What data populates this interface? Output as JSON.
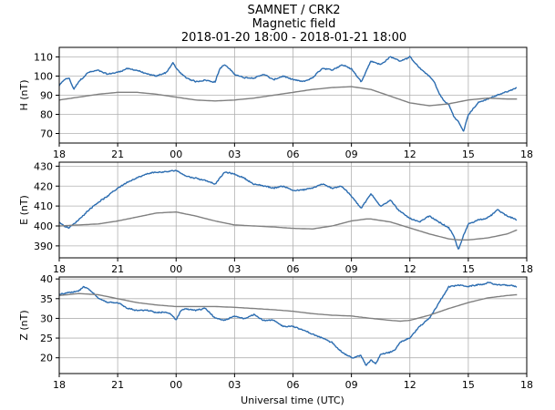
{
  "title": {
    "line1": "SAMNET / CRK2",
    "line2": "Magnetic field",
    "line3": "2018-01-20 18:00 - 2018-01-21 18:00"
  },
  "xaxis": {
    "label": "Universal time (UTC)",
    "range_hours": [
      0,
      24
    ],
    "ticks": [
      {
        "h": 0,
        "label": "18"
      },
      {
        "h": 3,
        "label": "21"
      },
      {
        "h": 6,
        "label": "00"
      },
      {
        "h": 9,
        "label": "03"
      },
      {
        "h": 12,
        "label": "06"
      },
      {
        "h": 15,
        "label": "09"
      },
      {
        "h": 18,
        "label": "12"
      },
      {
        "h": 21,
        "label": "15"
      },
      {
        "h": 24,
        "label": "18"
      }
    ]
  },
  "colors": {
    "measured": "#2b6cb0",
    "quiet_day": "#808080",
    "grid": "#b0b0b0"
  },
  "chart_data": [
    {
      "type": "line",
      "id": "H",
      "ylabel": "H (nT)",
      "ylim": [
        65,
        115
      ],
      "yticks": [
        70,
        80,
        90,
        100,
        110
      ],
      "grid": true,
      "series": [
        {
          "name": "measured",
          "x": [
            0,
            0.25,
            0.5,
            0.75,
            1,
            1.5,
            2,
            2.5,
            3,
            3.5,
            4,
            4.5,
            5,
            5.5,
            5.85,
            6,
            6.5,
            7,
            7.5,
            8,
            8.25,
            8.5,
            9,
            9.5,
            10,
            10.5,
            11,
            11.5,
            12,
            12.5,
            13,
            13.5,
            14,
            14.5,
            15,
            15.5,
            16,
            16.5,
            17,
            17.5,
            18,
            18.5,
            19,
            19.25,
            19.5,
            19.75,
            20,
            20.25,
            20.5,
            20.75,
            21,
            21.5,
            22,
            22.5,
            23,
            23.5
          ],
          "y": [
            95,
            98,
            99,
            93,
            97,
            102,
            103,
            101,
            102,
            104,
            103,
            101,
            100,
            102,
            107,
            104,
            99,
            97,
            98,
            97,
            104,
            106,
            101,
            99,
            99,
            101,
            98,
            100,
            98,
            97,
            99,
            104,
            103,
            106,
            104,
            97,
            108,
            106,
            110,
            108,
            110,
            104,
            100,
            97,
            91,
            87,
            85,
            79,
            76,
            71,
            80,
            86,
            88,
            90,
            92,
            94
          ]
        },
        {
          "name": "quiet_day",
          "x": [
            0,
            1,
            2,
            3,
            4,
            5,
            6,
            7,
            8,
            9,
            10,
            11,
            12,
            13,
            14,
            15,
            16,
            17,
            18,
            19,
            20,
            21,
            22,
            23,
            23.5
          ],
          "y": [
            87.5,
            89,
            90.5,
            91.5,
            91.5,
            90.5,
            89,
            87.5,
            87,
            87.5,
            88.5,
            90,
            91.5,
            93,
            94,
            94.5,
            93,
            89.5,
            86,
            84.5,
            85.5,
            87.5,
            88.5,
            88,
            88
          ]
        }
      ]
    },
    {
      "type": "line",
      "id": "E",
      "ylabel": "E (nT)",
      "ylim": [
        384,
        432
      ],
      "yticks": [
        390,
        400,
        410,
        420,
        430
      ],
      "grid": true,
      "series": [
        {
          "name": "measured",
          "x": [
            0,
            0.25,
            0.5,
            1,
            1.5,
            2,
            2.5,
            3,
            3.5,
            4,
            4.5,
            5,
            5.5,
            6,
            6.5,
            7,
            7.5,
            8,
            8.5,
            9,
            9.5,
            10,
            10.5,
            11,
            11.5,
            12,
            12.5,
            13,
            13.5,
            14,
            14.5,
            15,
            15.5,
            16,
            16.5,
            17,
            17.5,
            18,
            18.5,
            19,
            19.5,
            20,
            20.25,
            20.5,
            20.75,
            21,
            21.5,
            22,
            22.5,
            23,
            23.5
          ],
          "y": [
            402,
            400,
            399,
            403,
            408,
            412,
            415,
            419,
            422,
            424,
            426,
            427,
            427,
            428,
            425,
            424,
            423,
            421,
            427,
            426,
            424,
            421,
            420,
            419,
            420,
            418,
            418,
            419,
            421,
            419,
            420,
            415,
            409,
            416,
            410,
            413,
            407,
            404,
            402,
            405,
            402,
            399,
            395,
            388,
            395,
            401,
            403,
            404,
            408,
            405,
            403
          ]
        },
        {
          "name": "quiet_day",
          "x": [
            0,
            1,
            2,
            3,
            4,
            5,
            6,
            7,
            8,
            9,
            10,
            11,
            12,
            13,
            14,
            15,
            15.75,
            16,
            17,
            18,
            19,
            20,
            20.5,
            21,
            22,
            23,
            23.5
          ],
          "y": [
            400,
            400.5,
            401,
            402.5,
            404.5,
            406.5,
            407,
            405,
            402.5,
            400.5,
            400,
            399.5,
            398.8,
            398.5,
            400,
            402.5,
            403.5,
            403.5,
            402,
            399,
            396,
            393.5,
            393,
            393,
            394,
            396,
            398
          ]
        }
      ]
    },
    {
      "type": "line",
      "id": "Z",
      "ylabel": "Z (nT)",
      "ylim": [
        16,
        40.5
      ],
      "yticks": [
        20,
        25,
        30,
        35,
        40
      ],
      "grid": true,
      "series": [
        {
          "name": "measured",
          "x": [
            0,
            0.5,
            1,
            1.25,
            1.5,
            2,
            2.5,
            3,
            3.5,
            4,
            4.5,
            5,
            5.5,
            5.75,
            6,
            6.25,
            6.5,
            7,
            7.5,
            8,
            8.5,
            9,
            9.5,
            10,
            10.5,
            11,
            11.5,
            12,
            12.5,
            13,
            13.5,
            14,
            14.5,
            15,
            15.5,
            15.75,
            16,
            16.25,
            16.5,
            17,
            17.25,
            17.5,
            18,
            18.5,
            19,
            19.5,
            20,
            20.5,
            21,
            21.5,
            22,
            22.5,
            23,
            23.5
          ],
          "y": [
            36,
            36.5,
            37,
            38,
            37.5,
            35,
            34,
            34,
            32.5,
            32,
            32,
            31.5,
            31.5,
            31,
            29.5,
            32,
            32.5,
            32,
            32.5,
            30,
            29.5,
            30.5,
            30,
            31,
            29.5,
            29.5,
            28,
            28,
            27,
            26,
            25,
            24,
            21.5,
            20,
            20.5,
            18,
            19.5,
            18.5,
            21,
            21.5,
            22,
            24,
            25,
            28,
            30,
            34,
            38,
            38.5,
            38,
            38.5,
            39,
            38.5,
            38.5,
            38
          ]
        },
        {
          "name": "quiet_day",
          "x": [
            0,
            1,
            2,
            3,
            4,
            5,
            6,
            7,
            8,
            9,
            10,
            11,
            12,
            13,
            14,
            15,
            15.5,
            16,
            17,
            17.5,
            18,
            19,
            20,
            21,
            22,
            23,
            23.5
          ],
          "y": [
            35.8,
            36.3,
            36,
            35,
            34,
            33.4,
            33,
            33,
            33,
            32.8,
            32.5,
            32.2,
            31.8,
            31.2,
            30.8,
            30.6,
            30.3,
            30,
            29.5,
            29.3,
            29.5,
            30.8,
            32.5,
            34,
            35.2,
            35.8,
            36
          ]
        }
      ]
    }
  ]
}
